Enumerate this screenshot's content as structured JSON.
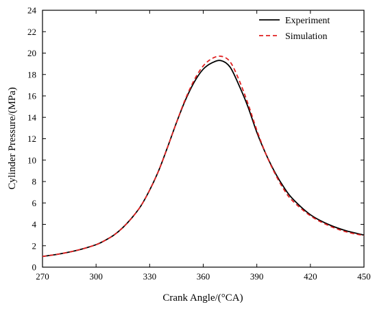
{
  "chart_data": {
    "type": "line",
    "title": "",
    "xlabel": "Crank Angle/(°CA)",
    "ylabel": "Cylinder Pressure/(MPa)",
    "xlim": [
      270,
      450
    ],
    "ylim": [
      0,
      24
    ],
    "xticks": [
      270,
      300,
      330,
      360,
      390,
      420,
      450
    ],
    "yticks": [
      0,
      2,
      4,
      6,
      8,
      10,
      12,
      14,
      16,
      18,
      20,
      22,
      24
    ],
    "grid": false,
    "legend_position": "top-right",
    "series": [
      {
        "name": "Experiment",
        "color": "#000000",
        "style": "solid",
        "x": [
          270,
          280,
          290,
          300,
          305,
          310,
          315,
          320,
          325,
          330,
          335,
          340,
          345,
          350,
          355,
          360,
          365,
          370,
          375,
          380,
          385,
          390,
          395,
          400,
          405,
          410,
          420,
          430,
          440,
          450
        ],
        "y": [
          1.0,
          1.25,
          1.6,
          2.1,
          2.5,
          3.0,
          3.7,
          4.6,
          5.7,
          7.2,
          9.0,
          11.2,
          13.5,
          15.6,
          17.3,
          18.5,
          19.1,
          19.3,
          18.7,
          17.0,
          15.0,
          12.6,
          10.6,
          8.9,
          7.5,
          6.4,
          4.9,
          4.0,
          3.4,
          3.0
        ]
      },
      {
        "name": "Simulation",
        "color": "#e02020",
        "style": "dashed",
        "x": [
          270,
          280,
          290,
          300,
          305,
          310,
          315,
          320,
          325,
          330,
          335,
          340,
          345,
          350,
          355,
          360,
          365,
          370,
          375,
          380,
          385,
          390,
          395,
          400,
          405,
          410,
          420,
          430,
          440,
          450
        ],
        "y": [
          1.0,
          1.25,
          1.6,
          2.1,
          2.5,
          3.0,
          3.7,
          4.6,
          5.7,
          7.2,
          9.0,
          11.2,
          13.5,
          15.7,
          17.5,
          18.8,
          19.5,
          19.7,
          19.2,
          17.5,
          15.3,
          12.8,
          10.6,
          8.8,
          7.3,
          6.2,
          4.8,
          3.9,
          3.3,
          2.95
        ]
      }
    ]
  }
}
